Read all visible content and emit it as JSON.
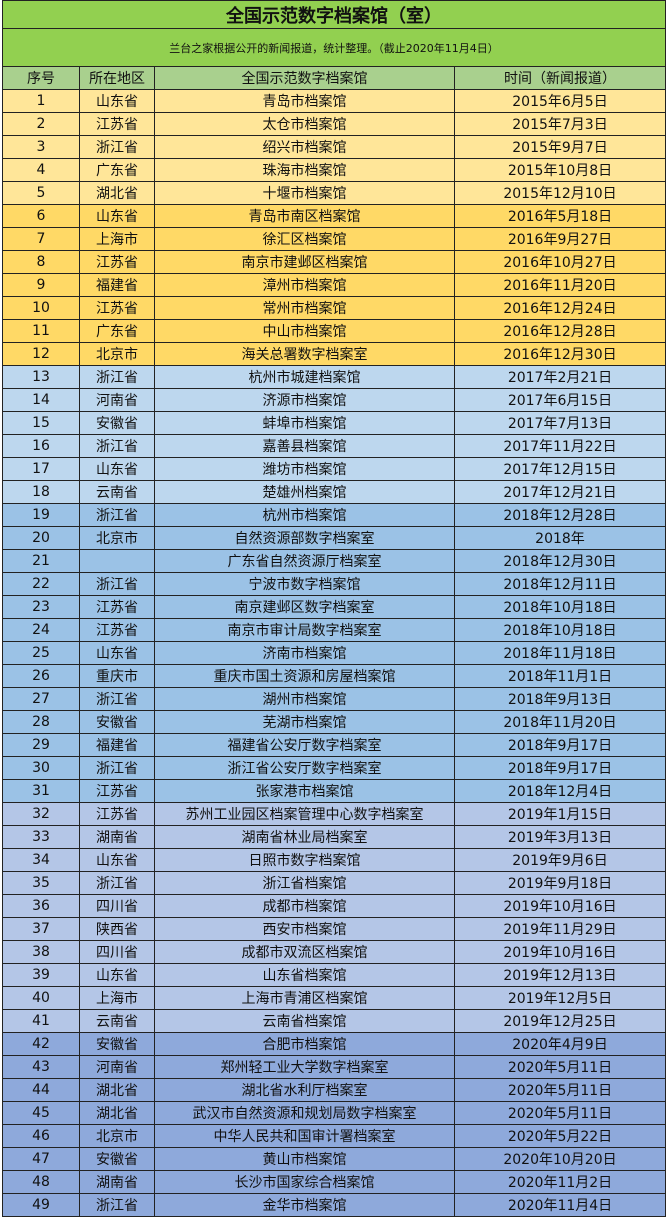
{
  "title": "全国示范数字档案馆（室）",
  "subtitle": "兰台之家根据公开的新闻报道，统计整理。（截止2020年11月4日）",
  "headers": [
    "序号",
    "所在地区",
    "全国示范数字档案馆",
    "时间（新闻报道）"
  ],
  "colors": {
    "title_bg": "#92d050",
    "header_bg": "#a9d08e",
    "year_bands": {
      "2015": "#ffe699",
      "2016": "#ffd966",
      "2017": "#bdd7ee",
      "2018": "#9bc2e6",
      "2019": "#b4c6e7",
      "2020": "#8ea9db"
    }
  },
  "rows": [
    [
      "1",
      "山东省",
      "青岛市档案馆",
      "2015年6月5日"
    ],
    [
      "2",
      "江苏省",
      "太仓市档案馆",
      "2015年7月3日"
    ],
    [
      "3",
      "浙江省",
      "绍兴市档案馆",
      "2015年9月7日"
    ],
    [
      "4",
      "广东省",
      "珠海市档案馆",
      "2015年10月8日"
    ],
    [
      "5",
      "湖北省",
      "十堰市档案馆",
      "2015年12月10日"
    ],
    [
      "6",
      "山东省",
      "青岛市南区档案馆",
      "2016年5月18日"
    ],
    [
      "7",
      "上海市",
      "徐汇区档案馆",
      "2016年9月27日"
    ],
    [
      "8",
      "江苏省",
      "南京市建邺区档案馆",
      "2016年10月27日"
    ],
    [
      "9",
      "福建省",
      "漳州市档案馆",
      "2016年11月20日"
    ],
    [
      "10",
      "江苏省",
      "常州市档案馆",
      "2016年12月24日"
    ],
    [
      "11",
      "广东省",
      "中山市档案馆",
      "2016年12月28日"
    ],
    [
      "12",
      "北京市",
      "海关总署数字档案室",
      "2016年12月30日"
    ],
    [
      "13",
      "浙江省",
      "杭州市城建档案馆",
      "2017年2月21日"
    ],
    [
      "14",
      "河南省",
      "济源市档案馆",
      "2017年6月15日"
    ],
    [
      "15",
      "安徽省",
      "蚌埠市档案馆",
      "2017年7月13日"
    ],
    [
      "16",
      "浙江省",
      "嘉善县档案馆",
      "2017年11月22日"
    ],
    [
      "17",
      "山东省",
      "潍坊市档案馆",
      "2017年12月15日"
    ],
    [
      "18",
      "云南省",
      "楚雄州档案馆",
      "2017年12月21日"
    ],
    [
      "19",
      "浙江省",
      "杭州市档案馆",
      "2018年12月28日"
    ],
    [
      "20",
      "北京市",
      "自然资源部数字档案室",
      "2018年"
    ],
    [
      "21",
      "",
      "广东省自然资源厅档案室",
      "2018年12月30日"
    ],
    [
      "22",
      "浙江省",
      "宁波市数字档案馆",
      "2018年12月11日"
    ],
    [
      "23",
      "江苏省",
      "南京建邺区数字档案室",
      "2018年10月18日"
    ],
    [
      "24",
      "江苏省",
      "南京市审计局数字档案室",
      "2018年10月18日"
    ],
    [
      "25",
      "山东省",
      "济南市档案馆",
      "2018年11月18日"
    ],
    [
      "26",
      "重庆市",
      "重庆市国土资源和房屋档案馆",
      "2018年11月1日"
    ],
    [
      "27",
      "浙江省",
      "湖州市档案馆",
      "2018年9月13日"
    ],
    [
      "28",
      "安徽省",
      "芜湖市档案馆",
      "2018年11月20日"
    ],
    [
      "29",
      "福建省",
      "福建省公安厅数字档案室",
      "2018年9月17日"
    ],
    [
      "30",
      "浙江省",
      "浙江省公安厅数字档案室",
      "2018年9月17日"
    ],
    [
      "31",
      "江苏省",
      "张家港市档案馆",
      "2018年12月4日"
    ],
    [
      "32",
      "江苏省",
      "苏州工业园区档案管理中心数字档案室",
      "2019年1月15日"
    ],
    [
      "33",
      "湖南省",
      "湖南省林业局档案室",
      "2019年3月13日"
    ],
    [
      "34",
      "山东省",
      "日照市数字档案馆",
      "2019年9月6日"
    ],
    [
      "35",
      "浙江省",
      "浙江省档案馆",
      "2019年9月18日"
    ],
    [
      "36",
      "四川省",
      "成都市档案馆",
      "2019年10月16日"
    ],
    [
      "37",
      "陕西省",
      "西安市档案馆",
      "2019年11月29日"
    ],
    [
      "38",
      "四川省",
      "成都市双流区档案馆",
      "2019年10月16日"
    ],
    [
      "39",
      "山东省",
      "山东省档案馆",
      "2019年12月13日"
    ],
    [
      "40",
      "上海市",
      "上海市青浦区档案馆",
      "2019年12月5日"
    ],
    [
      "41",
      "云南省",
      "云南省档案馆",
      "2019年12月25日"
    ],
    [
      "42",
      "安徽省",
      "合肥市档案馆",
      "2020年4月9日"
    ],
    [
      "43",
      "河南省",
      "郑州轻工业大学数字档案室",
      "2020年5月11日"
    ],
    [
      "44",
      "湖北省",
      "湖北省水利厅档案室",
      "2020年5月11日"
    ],
    [
      "45",
      "湖北省",
      "武汉市自然资源和规划局数字档案室",
      "2020年5月11日"
    ],
    [
      "46",
      "北京市",
      "中华人民共和国审计署档案室",
      "2020年5月22日"
    ],
    [
      "47",
      "安徽省",
      "黄山市档案馆",
      "2020年10月20日"
    ],
    [
      "48",
      "湖南省",
      "长沙市国家综合档案馆",
      "2020年11月2日"
    ],
    [
      "49",
      "浙江省",
      "金华市档案馆",
      "2020年11月4日"
    ]
  ]
}
